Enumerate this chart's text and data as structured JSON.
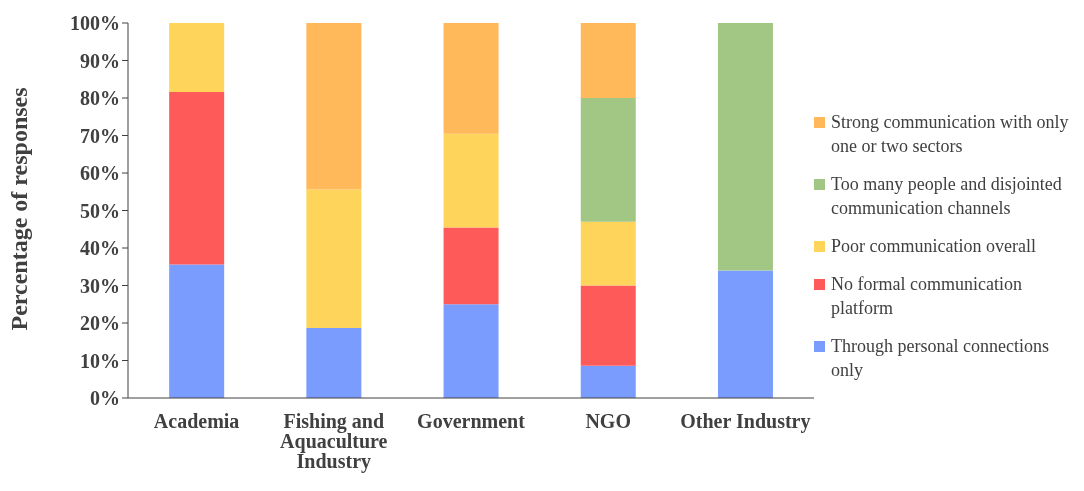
{
  "chart_data": {
    "type": "bar",
    "stacked": true,
    "ylabel": "Percentage of responses",
    "categories": [
      "Academia",
      "Fishing and Aquaculture Industry",
      "Government",
      "NGO",
      "Other Industry"
    ],
    "series": [
      {
        "name": "Through personal connections only",
        "color": "#7b9cff",
        "values": [
          35.6,
          18.7,
          25,
          8.6,
          34
        ]
      },
      {
        "name": "No formal communication platform",
        "color": "#ff5a5a",
        "values": [
          46,
          0,
          20.5,
          21.4,
          0
        ]
      },
      {
        "name": "Poor communication overall",
        "color": "#ffd45a",
        "values": [
          18.4,
          36.9,
          25,
          17,
          0
        ]
      },
      {
        "name": "Too many people and disjointed communication channels",
        "color": "#a2c785",
        "values": [
          0,
          0,
          0,
          33,
          66
        ]
      },
      {
        "name": "Strong communication with only one or two sectors",
        "color": "#ffb95a",
        "values": [
          0,
          44.4,
          29.5,
          20,
          0
        ]
      }
    ],
    "ylim": [
      0,
      100
    ],
    "yticks": [
      {
        "value": 0,
        "label": "0%"
      },
      {
        "value": 10,
        "label": "10%"
      },
      {
        "value": 20,
        "label": "20%"
      },
      {
        "value": 30,
        "label": "30%"
      },
      {
        "value": 40,
        "label": "40%"
      },
      {
        "value": 50,
        "label": "50%"
      },
      {
        "value": 60,
        "label": "60%"
      },
      {
        "value": 70,
        "label": "70%"
      },
      {
        "value": 80,
        "label": "80%"
      },
      {
        "value": 90,
        "label": "90%"
      },
      {
        "value": 100,
        "label": "100%"
      }
    ],
    "grid": false,
    "legend": "right"
  }
}
